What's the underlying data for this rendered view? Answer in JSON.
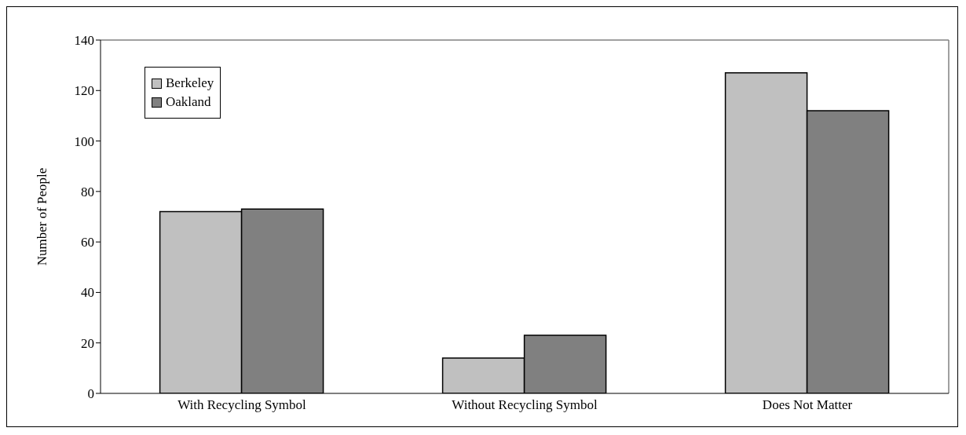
{
  "chart_data": {
    "type": "bar",
    "ylabel": "Number of People",
    "categories": [
      "With Recycling Symbol",
      "Without Recycling Symbol",
      "Does Not Matter"
    ],
    "series": [
      {
        "name": "Berkeley",
        "color": "#c0c0c0",
        "values": [
          72,
          14,
          127
        ]
      },
      {
        "name": "Oakland",
        "color": "#808080",
        "values": [
          73,
          23,
          112
        ]
      }
    ],
    "ylim": [
      0,
      140
    ],
    "yticks": [
      0,
      20,
      40,
      60,
      80,
      100,
      120,
      140
    ],
    "grid": false,
    "legend": "top left"
  }
}
